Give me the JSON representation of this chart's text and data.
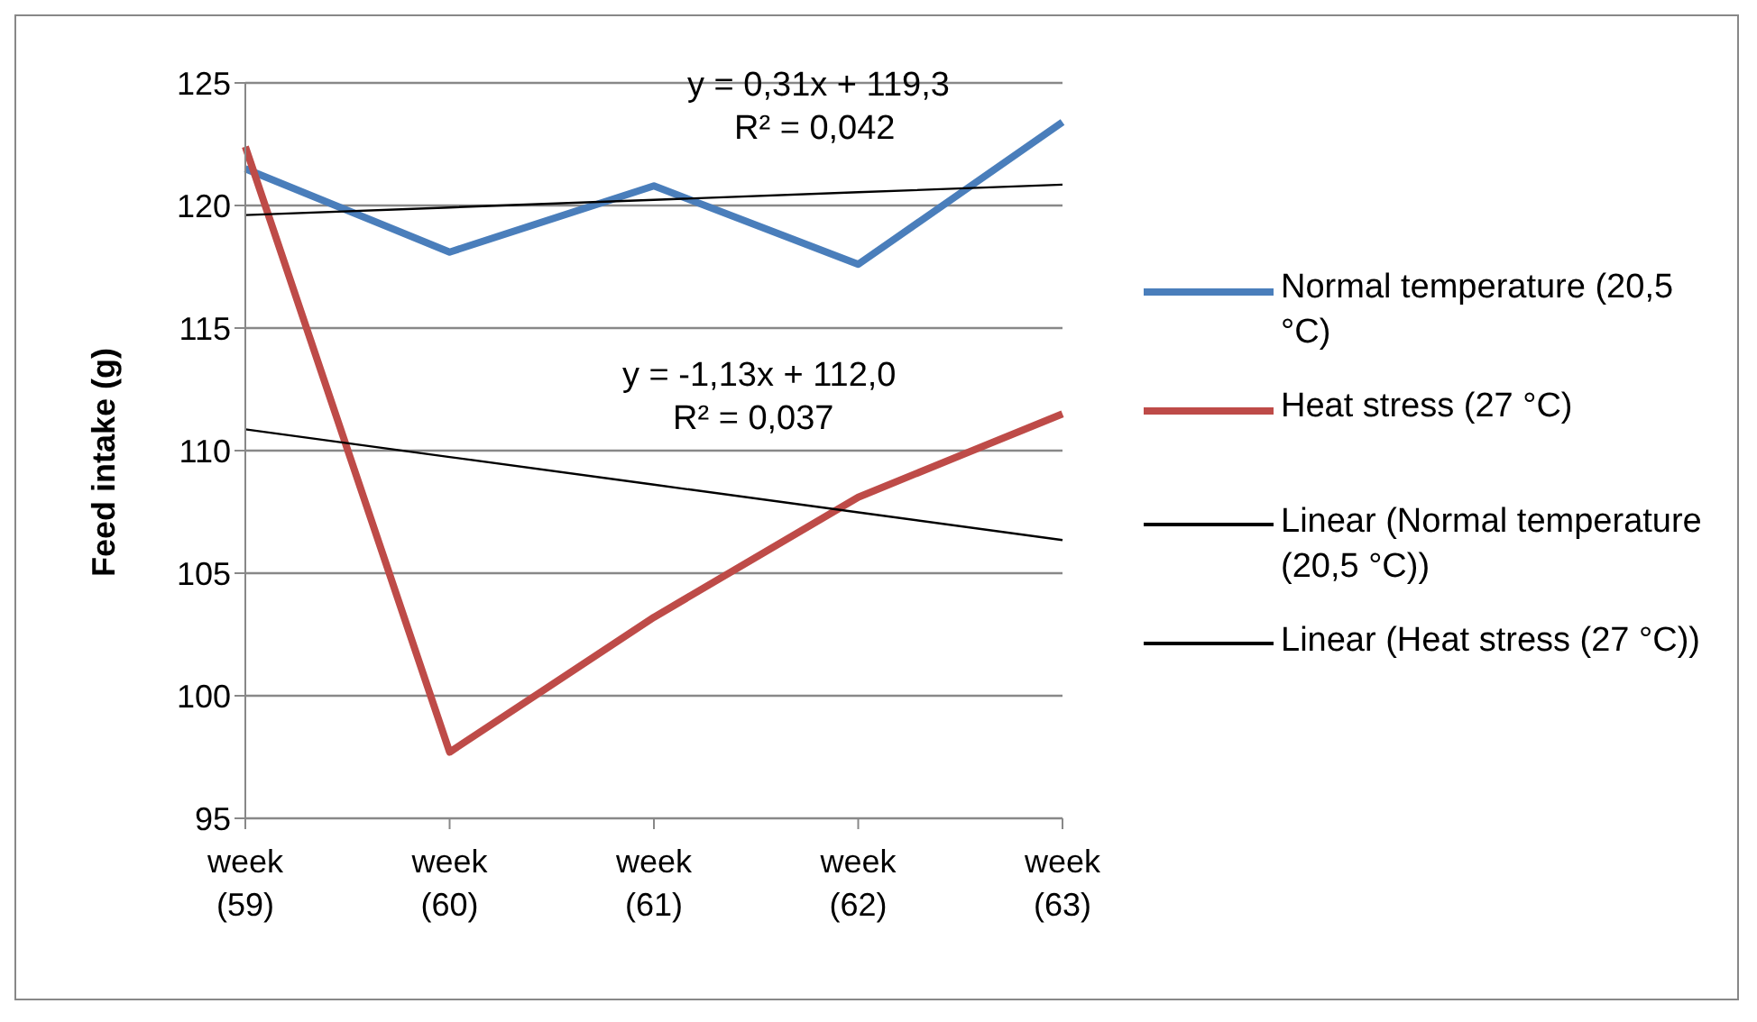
{
  "chart_data": {
    "type": "line",
    "ylabel": "Feed intake (g)",
    "categories": [
      "week (59)",
      "week (60)",
      "week (61)",
      "week (62)",
      "week (63)"
    ],
    "series": [
      {
        "name": "Normal temperature (20,5 °C)",
        "color": "#4a7ebb",
        "values": [
          121.5,
          118.1,
          120.8,
          117.6,
          123.4
        ]
      },
      {
        "name": "Heat stress (27 °C)",
        "color": "#be4b48",
        "values": [
          122.4,
          97.7,
          103.2,
          108.1,
          111.5
        ]
      },
      {
        "name": "Linear (Normal temperature (20,5 °C))",
        "type": "line",
        "color": "#000000",
        "values": [
          119.61,
          119.92,
          120.23,
          120.54,
          120.85
        ]
      },
      {
        "name": "Linear (Heat stress (27 °C))",
        "type": "line",
        "color": "#000000",
        "values": [
          110.87,
          109.74,
          108.61,
          107.48,
          106.35
        ]
      }
    ],
    "annotations": [
      "y = 0,31x + 119,3",
      "R² = 0,042",
      "y = -1,13x + 112,0",
      "R² = 0,037"
    ],
    "ylim": [
      95,
      125
    ],
    "yticks": [
      95,
      100,
      105,
      110,
      115,
      120,
      125
    ],
    "grid": "y",
    "legend": "right",
    "marker": "none",
    "line_style": "solid"
  }
}
